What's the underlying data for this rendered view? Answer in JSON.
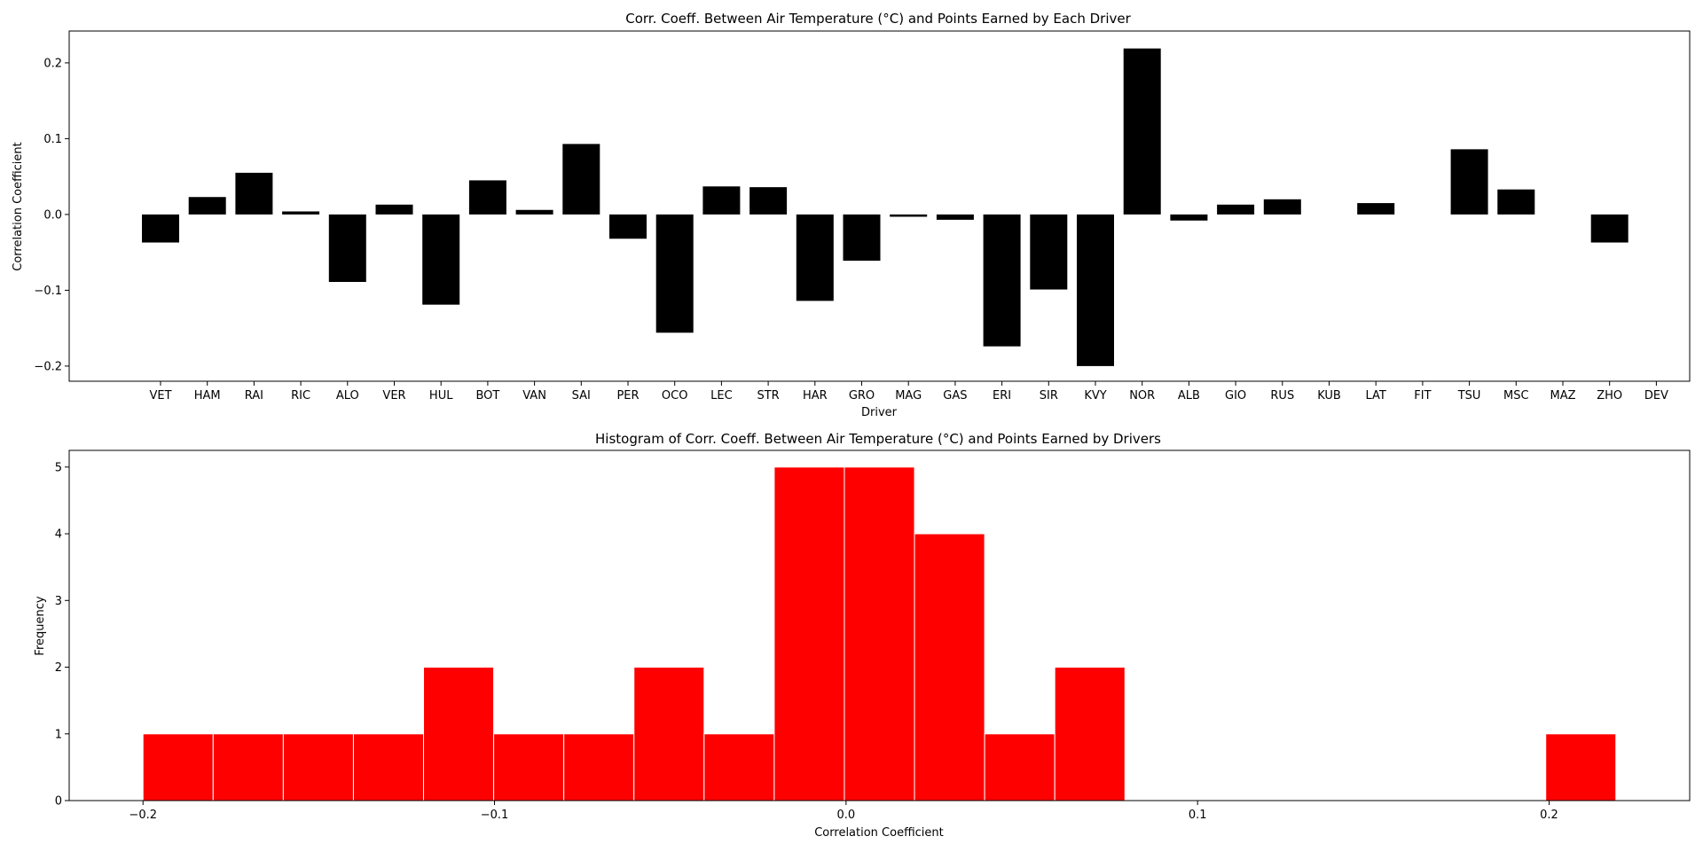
{
  "colors": {
    "bar_fill": "#000000",
    "hist_fill": "#ff0000",
    "hist_edge": "#ffffff",
    "axes": "#000000",
    "background": "#ffffff"
  },
  "chart_data": [
    {
      "type": "bar",
      "title": "Corr. Coeff. Between Air Temperature (°C) and Points Earned by Each Driver",
      "xlabel": "Driver",
      "ylabel": "Correlation Coefficient",
      "ylim": [
        -0.22,
        0.242
      ],
      "yticks": [
        -0.2,
        -0.1,
        0.0,
        0.1,
        0.2
      ],
      "ytick_labels": [
        "−0.2",
        "−0.1",
        "0.0",
        "0.1",
        "0.2"
      ],
      "grid": false,
      "categories": [
        "VET",
        "HAM",
        "RAI",
        "RIC",
        "ALO",
        "VER",
        "HUL",
        "BOT",
        "VAN",
        "SAI",
        "PER",
        "OCO",
        "LEC",
        "STR",
        "HAR",
        "GRO",
        "MAG",
        "GAS",
        "ERI",
        "SIR",
        "KVY",
        "NOR",
        "ALB",
        "GIO",
        "RUS",
        "KUB",
        "LAT",
        "FIT",
        "TSU",
        "MSC",
        "MAZ",
        "ZHO",
        "DEV"
      ],
      "values": [
        -0.037,
        0.023,
        0.055,
        0.004,
        -0.089,
        0.013,
        -0.119,
        0.045,
        0.006,
        0.093,
        -0.032,
        -0.156,
        0.037,
        0.036,
        -0.114,
        -0.061,
        -0.003,
        -0.007,
        -0.174,
        -0.099,
        -0.2,
        0.219,
        -0.008,
        0.013,
        0.02,
        null,
        0.015,
        null,
        0.086,
        0.033,
        null,
        -0.037,
        null
      ]
    },
    {
      "type": "bar",
      "subtype": "histogram",
      "title": "Histogram of Corr. Coeff. Between Air Temperature (°C) and Points Earned by Drivers",
      "xlabel": "Correlation Coefficient",
      "ylabel": "Frequency",
      "xlim": [
        -0.221,
        0.24
      ],
      "ylim": [
        0,
        5.25
      ],
      "xticks": [
        -0.2,
        -0.1,
        0.0,
        0.1,
        0.2
      ],
      "xtick_labels": [
        "−0.2",
        "−0.1",
        "0.0",
        "0.1",
        "0.2"
      ],
      "yticks": [
        0,
        1,
        2,
        3,
        4,
        5
      ],
      "ytick_labels": [
        "0",
        "1",
        "2",
        "3",
        "4",
        "5"
      ],
      "grid": false,
      "bin_range": [
        -0.2,
        0.219
      ],
      "counts": [
        1,
        1,
        1,
        1,
        2,
        1,
        1,
        2,
        1,
        5,
        5,
        4,
        1,
        2,
        0,
        0,
        0,
        0,
        0,
        0,
        1
      ]
    }
  ]
}
